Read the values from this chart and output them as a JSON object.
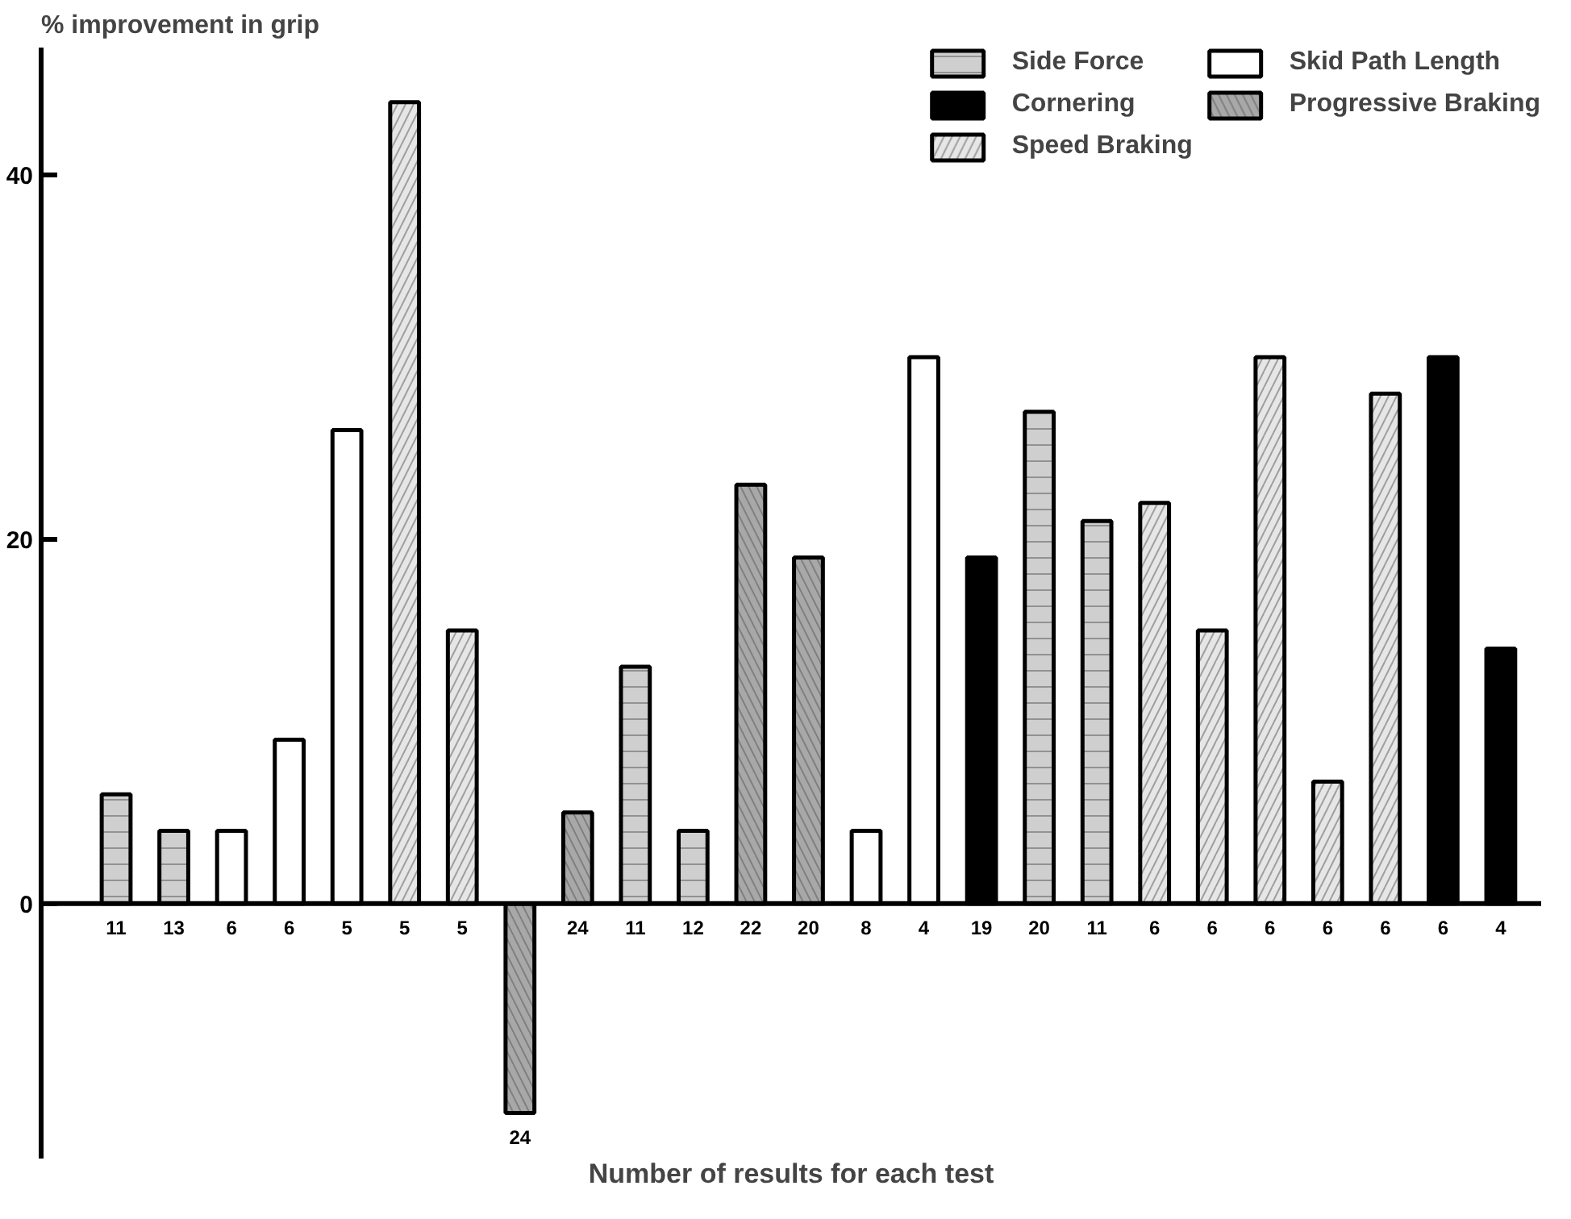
{
  "chart_data": {
    "type": "bar",
    "ylabel": "% improvement in grip",
    "xlabel": "Number of results for each test",
    "categories": [
      "11",
      "13",
      "6",
      "6",
      "5",
      "5",
      "5",
      "24",
      "24",
      "11",
      "12",
      "22",
      "20",
      "8",
      "4",
      "19",
      "20",
      "11",
      "6",
      "6",
      "6",
      "6",
      "6",
      "6",
      "4"
    ],
    "series": [
      {
        "name": "Side Force",
        "color": "#cfcfcf",
        "values": [
          6,
          4,
          null,
          null,
          null,
          null,
          null,
          null,
          null,
          13,
          4,
          null,
          null,
          null,
          null,
          null,
          27,
          21,
          null,
          null,
          null,
          null,
          null,
          null,
          null
        ]
      },
      {
        "name": "Cornering",
        "color": "#000000",
        "values": [
          null,
          null,
          null,
          null,
          null,
          null,
          null,
          null,
          null,
          null,
          null,
          null,
          null,
          null,
          null,
          19,
          null,
          null,
          null,
          null,
          null,
          null,
          null,
          30,
          14
        ]
      },
      {
        "name": "Speed Braking",
        "color": "#e6e6e6",
        "values": [
          null,
          null,
          null,
          null,
          null,
          44,
          15,
          null,
          null,
          null,
          null,
          null,
          null,
          null,
          null,
          null,
          null,
          null,
          22,
          15,
          30,
          6.7,
          28,
          null,
          null
        ]
      },
      {
        "name": "Skid Path Length",
        "color": "#ffffff",
        "values": [
          null,
          null,
          4,
          9,
          26,
          null,
          null,
          null,
          null,
          null,
          null,
          null,
          null,
          4,
          30,
          null,
          null,
          null,
          null,
          null,
          null,
          null,
          null,
          null,
          null
        ]
      },
      {
        "name": "Progressive Braking",
        "color": "#a8a8a8",
        "values": [
          null,
          null,
          null,
          null,
          null,
          null,
          null,
          -11.5,
          5,
          null,
          null,
          23,
          19,
          null,
          null,
          null,
          null,
          null,
          null,
          null,
          null,
          null,
          null,
          null,
          null
        ]
      }
    ],
    "ylim": [
      -14,
      47
    ],
    "yticks": [
      0,
      20,
      40
    ],
    "grid": false,
    "legend": "top right"
  }
}
